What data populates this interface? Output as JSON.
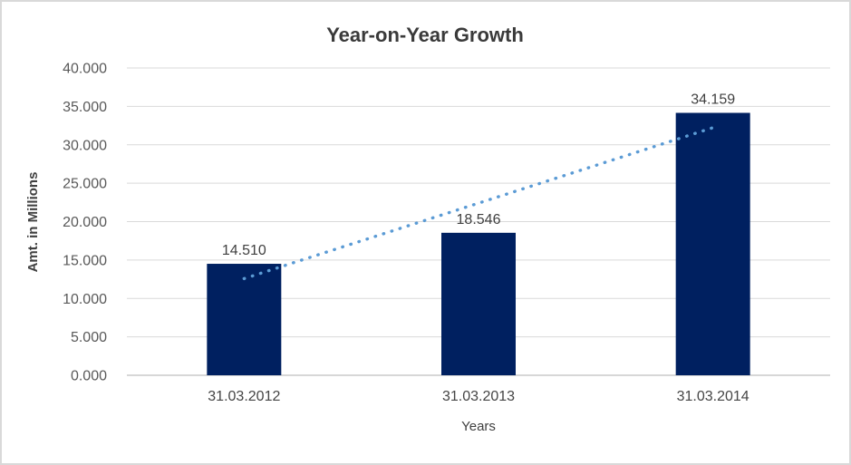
{
  "frame": {
    "background": "#FFFFFF",
    "border_color": "#D9D9D9"
  },
  "chart_data": {
    "type": "bar",
    "title": "Year-on-Year Growth",
    "xlabel": "Years",
    "ylabel": "Amt. in Millions",
    "categories": [
      "31.03.2012",
      "31.03.2013",
      "31.03.2014"
    ],
    "values": [
      14.51,
      18.546,
      34.159
    ],
    "value_labels": [
      "14.510",
      "18.546",
      "34.159"
    ],
    "ylim": [
      0,
      40
    ],
    "ytick_step": 5,
    "ytick_labels": [
      "0.000",
      "5.000",
      "10.000",
      "15.000",
      "20.000",
      "25.000",
      "30.000",
      "35.000",
      "40.000"
    ],
    "grid": true,
    "legend_position": "none",
    "bar_color": "#002060",
    "trendline": {
      "type": "linear",
      "style": "dotted",
      "color": "#5B9BD5"
    },
    "gridline_color": "#D9D9D9",
    "axis_line_color": "#BFBFBF",
    "title_color": "#3A3A3A",
    "tick_color": "#595959",
    "label_color": "#404040"
  }
}
